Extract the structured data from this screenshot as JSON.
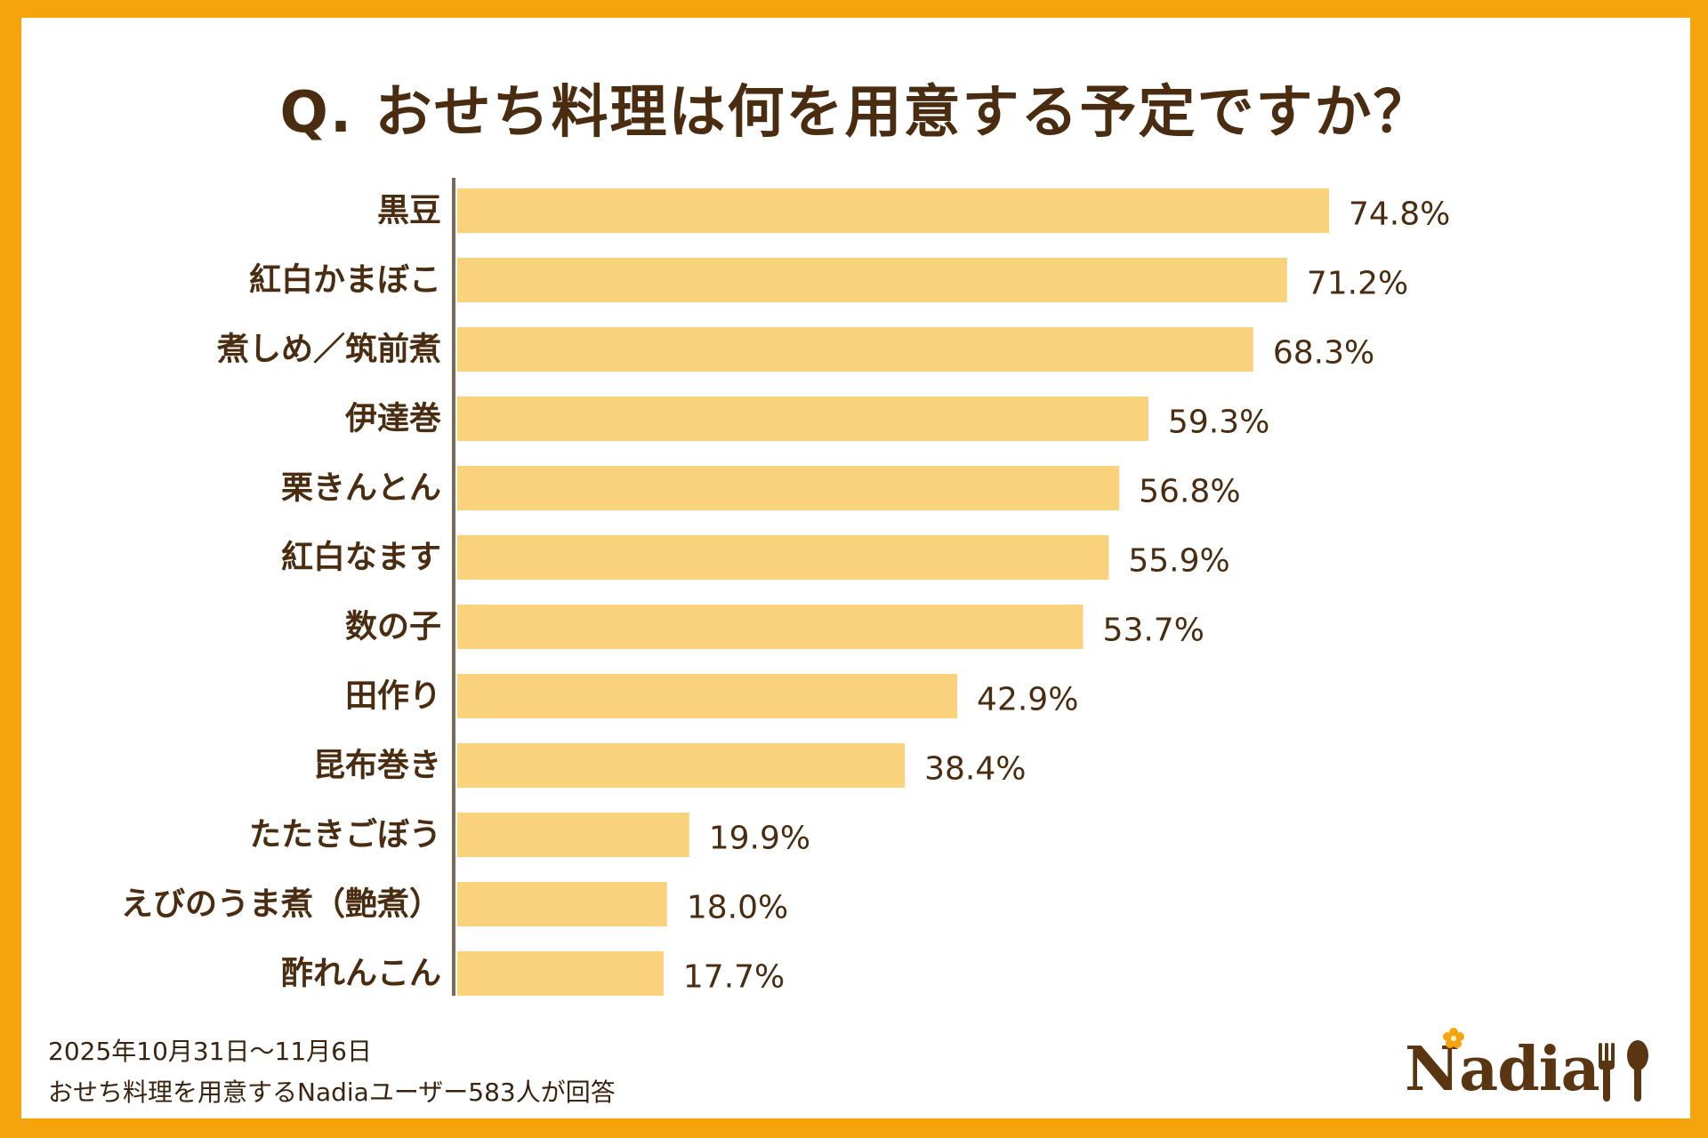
{
  "title": "Q. おせち料理は何を用意する予定ですか？",
  "footnote": {
    "line1": "2025年10月31日〜11月6日",
    "line2": "おせち料理を用意するNadiaユーザー583人が回答"
  },
  "logo": {
    "text": "Nadia"
  },
  "colors": {
    "background": "#f5a40c",
    "bar": "#fad27b",
    "text": "#4a2c11",
    "axis": "#7a6a5a"
  },
  "chart_data": {
    "type": "bar",
    "orientation": "horizontal",
    "title": "Q. おせち料理は何を用意する予定ですか？",
    "categories": [
      "黒豆",
      "紅白かまぼこ",
      "煮しめ／筑前煮",
      "伊達巻",
      "栗きんとん",
      "紅白なます",
      "数の子",
      "田作り",
      "昆布巻き",
      "たたきごぼう",
      "えびのうま煮（艶煮）",
      "酢れんこん"
    ],
    "values": [
      74.8,
      71.2,
      68.3,
      59.3,
      56.8,
      55.9,
      53.7,
      42.9,
      38.4,
      19.9,
      18.0,
      17.7
    ],
    "value_labels": [
      "74.8%",
      "71.2%",
      "68.3%",
      "59.3%",
      "56.8%",
      "55.9%",
      "53.7%",
      "42.9%",
      "38.4%",
      "19.9%",
      "18.0%",
      "17.7%"
    ],
    "unit": "%",
    "xlim": [
      0,
      100
    ],
    "grid": false,
    "legend": "none"
  }
}
